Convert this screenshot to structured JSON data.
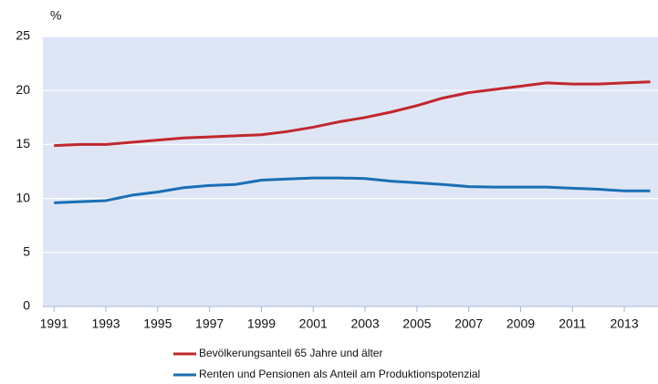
{
  "chart_data": {
    "type": "line",
    "y_label": "%",
    "x": [
      1991,
      1992,
      1993,
      1994,
      1995,
      1996,
      1997,
      1998,
      1999,
      2000,
      2001,
      2002,
      2003,
      2004,
      2005,
      2006,
      2007,
      2008,
      2009,
      2010,
      2011,
      2012,
      2013,
      2014
    ],
    "series": [
      {
        "name": "Bevölkerungsanteil 65 Jahre und älter",
        "color": "#c1272d",
        "values": [
          14.9,
          15.0,
          15.0,
          15.2,
          15.4,
          15.6,
          15.7,
          15.8,
          15.9,
          16.2,
          16.6,
          17.1,
          17.5,
          18.0,
          18.6,
          19.3,
          19.8,
          20.1,
          20.4,
          20.7,
          20.6,
          20.6,
          20.7,
          20.8
        ]
      },
      {
        "name": "Renten und Pensionen als Anteil am Produktionspotenzial",
        "color": "#1a6fb5",
        "values": [
          9.6,
          9.7,
          9.8,
          10.3,
          10.6,
          11.0,
          11.2,
          11.3,
          11.7,
          11.8,
          11.9,
          11.9,
          11.85,
          11.6,
          11.45,
          11.3,
          11.1,
          11.05,
          11.05,
          11.05,
          10.95,
          10.85,
          10.7,
          10.7
        ]
      }
    ],
    "xlim": [
      1990.57,
      2014.3
    ],
    "xticks": [
      1991,
      1993,
      1995,
      1997,
      1999,
      2001,
      2003,
      2005,
      2007,
      2009,
      2011,
      2013
    ],
    "ylim": [
      0,
      25
    ],
    "yticks": [
      0,
      5,
      10,
      15,
      20,
      25
    ],
    "grid": true,
    "background": "#dee6f5"
  }
}
